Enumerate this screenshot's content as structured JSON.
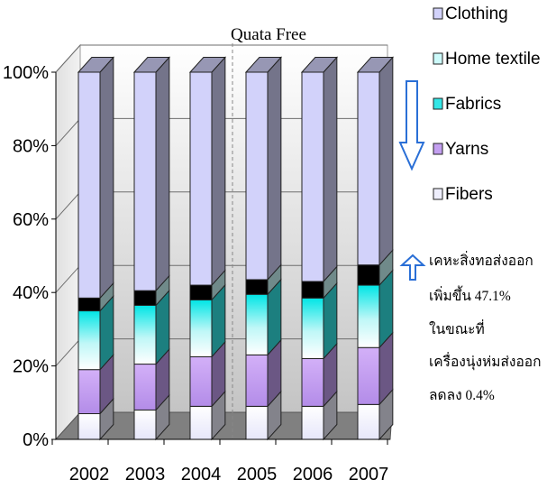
{
  "chart_data": {
    "type": "bar",
    "stacked": true,
    "three_d": true,
    "percent_stacked": true,
    "categories": [
      "2002",
      "2003",
      "2004",
      "2005",
      "2006",
      "2007"
    ],
    "series": [
      {
        "name": "Fibers",
        "values": [
          7,
          8,
          9,
          9,
          9,
          9.5
        ],
        "color": "#eeeefc"
      },
      {
        "name": "Yarns",
        "values": [
          12,
          12.5,
          13.5,
          14,
          13,
          15.5
        ],
        "color": "#c39ff0"
      },
      {
        "name": "Fabrics",
        "values": [
          16,
          16,
          15.5,
          16.5,
          16.5,
          17
        ],
        "color": "#33e6e6"
      },
      {
        "name": "Home textile",
        "values": [
          3.5,
          4,
          4,
          4,
          4.5,
          5.5
        ],
        "color": "#ccfafa"
      },
      {
        "name": "Clothing",
        "values": [
          61.5,
          59.5,
          58,
          56.5,
          57,
          52.5
        ],
        "color": "#d2d2fa"
      }
    ],
    "y_ticks": [
      "0%",
      "20%",
      "40%",
      "60%",
      "80%",
      "100%"
    ],
    "ylim": [
      0,
      100
    ],
    "title": "",
    "xlabel": "",
    "ylabel": "",
    "grid": true,
    "legend_position": "right",
    "legend_order": [
      "Clothing",
      "Home textile",
      "Fabrics",
      "Yarns",
      "Fibers"
    ],
    "annotation": "Quata Free",
    "annotation_after_category": "2004"
  },
  "side_note": {
    "lines": [
      "เคหะสิ่งทอส่งออก",
      "เพิ่มขึ้น 47.1%",
      "ในขณะที่",
      "เครื่องนุ่งห่มส่งออก",
      "ลดลง 0.4%"
    ]
  }
}
